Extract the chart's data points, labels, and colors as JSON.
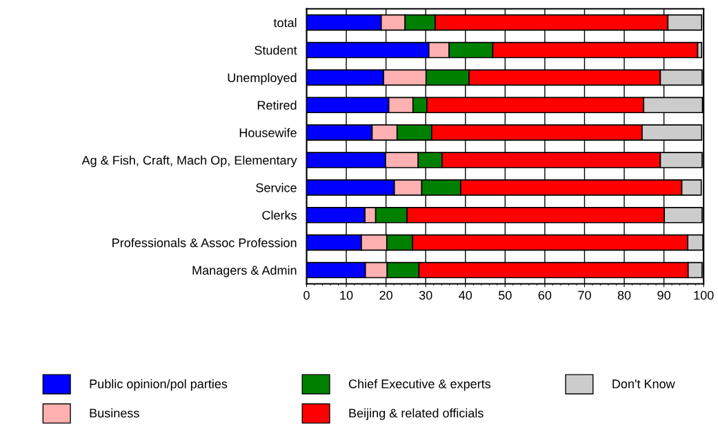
{
  "chart_data": {
    "type": "bar",
    "orientation": "horizontal",
    "stacked": true,
    "categories": [
      "total",
      "Student",
      "Unemployed",
      "Retired",
      "Housewife",
      "Ag & Fish, Craft, Mach Op, Elementary",
      "Service",
      "Clerks",
      "Professionals & Assoc Profession",
      "Managers & Admin"
    ],
    "series": [
      {
        "name": "Public opinion/pol parties",
        "color": "#0000ff",
        "values": [
          18.8,
          30.8,
          19.4,
          20.7,
          16.5,
          19.9,
          22.1,
          14.7,
          13.8,
          14.8
        ]
      },
      {
        "name": "Business",
        "color": "#ffb0b0",
        "values": [
          6.0,
          5.1,
          10.7,
          6.1,
          6.3,
          8.2,
          6.9,
          2.7,
          6.4,
          5.5
        ]
      },
      {
        "name": "Chief Executive & experts",
        "color": "#008000",
        "values": [
          7.6,
          11.0,
          10.8,
          3.5,
          8.7,
          6.0,
          9.8,
          7.9,
          6.5,
          8.0
        ]
      },
      {
        "name": "Beijing & related officials",
        "color": "#ff0000",
        "values": [
          58.6,
          51.6,
          48.2,
          54.6,
          53.0,
          55.0,
          55.7,
          64.8,
          69.3,
          67.8
        ]
      },
      {
        "name": "Don't Know",
        "color": "#cccccc",
        "values": [
          8.5,
          1.0,
          10.5,
          14.8,
          15.0,
          10.5,
          4.9,
          9.5,
          3.8,
          3.5
        ]
      }
    ],
    "xlim": [
      0,
      100
    ],
    "xticks": [
      0,
      10,
      20,
      30,
      40,
      50,
      60,
      70,
      80,
      90,
      100
    ],
    "grid": "x",
    "legend": "bottom"
  }
}
